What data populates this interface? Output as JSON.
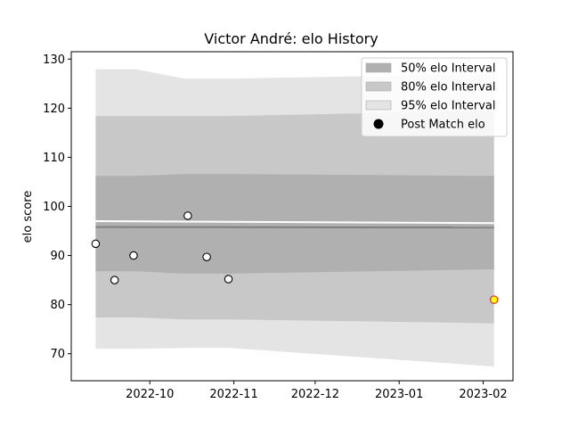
{
  "chart_data": {
    "type": "area",
    "title": "Victor André: elo History",
    "xlabel": "",
    "ylabel": "elo score",
    "xlim": [
      "2022-09-02",
      "2023-02-12"
    ],
    "ylim": [
      64.5,
      131.5
    ],
    "x_ticks": [
      "2022-10",
      "2022-11",
      "2022-12",
      "2023-01",
      "2023-02"
    ],
    "x_tick_dates": [
      "2022-10-01",
      "2022-11-01",
      "2022-12-01",
      "2023-01-01",
      "2023-02-01"
    ],
    "y_ticks": [
      70,
      80,
      90,
      100,
      110,
      120,
      130
    ],
    "grid": false,
    "legend_position": "top-right",
    "legend": [
      {
        "label": "50% elo Interval",
        "color": "#b0b0b0",
        "kind": "patch"
      },
      {
        "label": "80% elo Interval",
        "color": "#c8c8c8",
        "kind": "patch"
      },
      {
        "label": "95% elo Interval",
        "color": "#e4e4e4",
        "kind": "patch"
      },
      {
        "label": "Post Match elo",
        "color": "#000000",
        "kind": "marker"
      }
    ],
    "intervals": {
      "x": [
        "2022-09-11",
        "2022-09-26",
        "2022-10-14",
        "2022-10-30",
        "2023-02-05"
      ],
      "band95": {
        "lower": [
          71.0,
          71.0,
          71.2,
          71.2,
          67.4
        ],
        "upper": [
          127.9,
          127.9,
          126.0,
          126.0,
          127.0
        ]
      },
      "band80": {
        "lower": [
          77.4,
          77.4,
          77.0,
          77.0,
          76.2
        ],
        "upper": [
          118.4,
          118.4,
          118.4,
          118.4,
          119.5
        ]
      },
      "band50": {
        "lower": [
          86.8,
          86.8,
          86.3,
          86.3,
          87.2
        ],
        "upper": [
          106.2,
          106.2,
          106.6,
          106.6,
          106.2
        ]
      }
    },
    "mean_line": {
      "x": [
        "2022-09-11",
        "2023-02-05"
      ],
      "y": [
        95.8,
        95.7
      ],
      "color": "#7f7f7f"
    },
    "white_line": {
      "x": [
        "2022-09-11",
        "2023-02-05"
      ],
      "y": [
        97.0,
        96.6
      ],
      "color": "#ffffff"
    },
    "series": [
      {
        "name": "Post Match elo",
        "x": [
          "2022-09-11",
          "2022-09-18",
          "2022-09-25",
          "2022-10-15",
          "2022-10-22",
          "2022-10-30"
        ],
        "y": [
          92.4,
          85.0,
          90.0,
          98.1,
          89.7,
          85.2
        ],
        "color": "#ffffff",
        "edge_color": "#000000"
      },
      {
        "name": "",
        "x": [
          "2023-02-05"
        ],
        "y": [
          81.0
        ],
        "color": "#ffff00",
        "edge_color": "#d62728"
      }
    ]
  }
}
